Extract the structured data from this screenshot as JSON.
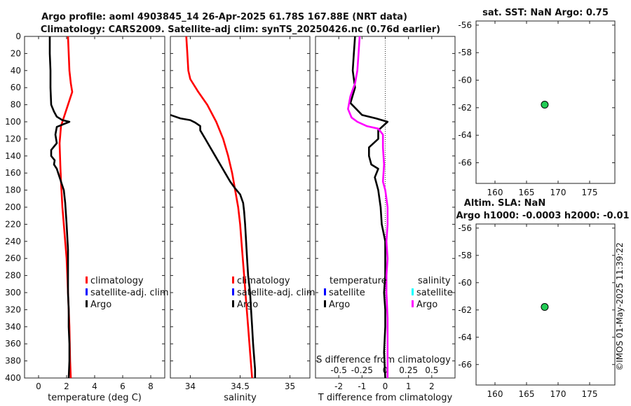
{
  "title": {
    "line1": "Argo profile: aoml 4903845_14 26-Apr-2025 61.78S 167.88E (NRT data)",
    "line2": "Climatology: CARS2009. Satellite-adj clim: synTS_20250426.nc (0.76d earlier)"
  },
  "timestamp": "©IMOS 01-May-2025 11:39:22",
  "colors": {
    "argo": "#000000",
    "climatology": "#ff0000",
    "satellite": "#0000ff",
    "salinity_argo": "#ff00ff",
    "salinity_sat": "#00ffff",
    "marker_fill": "#22cc55"
  },
  "chart_data": [
    {
      "id": "temperature",
      "type": "line",
      "xlabel": "temperature (deg C)",
      "xlim": [
        -1,
        9
      ],
      "xticks": [
        0,
        2,
        4,
        6,
        8
      ],
      "xticklabels": [
        "0",
        "2",
        "4",
        "6",
        "8"
      ],
      "ylim": [
        0,
        400
      ],
      "yticks": [
        0,
        20,
        40,
        60,
        80,
        100,
        120,
        140,
        160,
        180,
        200,
        220,
        240,
        260,
        280,
        300,
        320,
        340,
        360,
        380,
        400
      ],
      "yticklabels": [
        "0",
        "20",
        "40",
        "60",
        "80",
        "100",
        "120",
        "140",
        "160",
        "180",
        "200",
        "220",
        "240",
        "260",
        "280",
        "300",
        "320",
        "340",
        "360",
        "380",
        "400"
      ],
      "legend": [
        "climatology",
        "satellite-adj. clim",
        "Argo"
      ],
      "series": [
        {
          "name": "climatology",
          "color": "#ff0000",
          "x": [
            2.1,
            2.15,
            2.2,
            2.3,
            2.4,
            2.0,
            1.6,
            1.5,
            1.55,
            1.6,
            1.65,
            1.7,
            1.8,
            1.9,
            2.0,
            2.05,
            2.1,
            2.15,
            2.2,
            2.25,
            2.3
          ],
          "y": [
            0,
            20,
            40,
            55,
            65,
            85,
            105,
            125,
            150,
            170,
            185,
            200,
            220,
            240,
            260,
            280,
            300,
            320,
            340,
            380,
            400
          ]
        },
        {
          "name": "Argo",
          "color": "#000000",
          "x": [
            0.8,
            0.8,
            0.85,
            0.85,
            0.9,
            1.1,
            1.3,
            1.7,
            2.2,
            1.3,
            1.2,
            1.3,
            0.9,
            0.9,
            1.15,
            1.1,
            1.3,
            1.5,
            1.8,
            1.9,
            2.0,
            2.1,
            2.1,
            2.1,
            2.15,
            2.15,
            2.2,
            2.2,
            2.15
          ],
          "y": [
            0,
            20,
            40,
            60,
            80,
            88,
            94,
            98,
            100,
            106,
            115,
            125,
            133,
            140,
            145,
            150,
            155,
            165,
            180,
            195,
            220,
            250,
            280,
            300,
            320,
            340,
            360,
            380,
            400
          ]
        }
      ]
    },
    {
      "id": "salinity",
      "type": "line",
      "xlabel": "salinity",
      "xlim": [
        33.8,
        35.2
      ],
      "xticks": [
        34,
        34.5,
        35
      ],
      "xticklabels": [
        "34",
        "34.5",
        "35"
      ],
      "ylim": [
        0,
        400
      ],
      "legend": [
        "climatology",
        "satellite-adj. clim",
        "Argo"
      ],
      "series": [
        {
          "name": "climatology",
          "color": "#ff0000",
          "x": [
            33.96,
            33.97,
            33.98,
            34.0,
            34.08,
            34.17,
            34.26,
            34.33,
            34.38,
            34.42,
            34.45,
            34.48,
            34.5,
            34.52,
            34.54,
            34.56,
            34.58,
            34.6,
            34.62
          ],
          "y": [
            0,
            20,
            40,
            50,
            65,
            80,
            100,
            120,
            140,
            160,
            180,
            200,
            220,
            250,
            280,
            310,
            340,
            370,
            400
          ]
        },
        {
          "name": "Argo",
          "color": "#000000",
          "x": [
            33.8,
            33.9,
            34.0,
            34.05,
            34.1,
            34.1,
            34.15,
            34.2,
            34.25,
            34.3,
            34.35,
            34.4,
            34.45,
            34.5,
            34.53,
            34.54,
            34.55,
            34.56,
            34.57,
            34.58,
            34.6,
            34.61,
            34.62,
            34.63,
            34.64,
            34.65,
            34.65
          ],
          "y": [
            92,
            96,
            98,
            101,
            105,
            110,
            120,
            130,
            140,
            150,
            160,
            170,
            178,
            185,
            195,
            205,
            220,
            240,
            260,
            280,
            300,
            320,
            340,
            360,
            375,
            390,
            400
          ]
        }
      ]
    },
    {
      "id": "difference",
      "type": "line",
      "xlabel": "T difference from climatology",
      "xlabel2": "S difference from climatology",
      "xlim": [
        -3,
        3
      ],
      "xticks": [
        -2,
        -1,
        0,
        1,
        2
      ],
      "xticklabels": [
        "-2",
        "-1",
        "0",
        "1",
        "2"
      ],
      "x2ticks": [
        -2,
        -1,
        0,
        1,
        2
      ],
      "x2ticklabels": [
        "-0.5",
        "-0.25",
        "0",
        "0.25",
        "0.5"
      ],
      "ylim": [
        0,
        400
      ],
      "legend_t": [
        "temperature",
        "satellite",
        "Argo"
      ],
      "legend_s": [
        "salinity",
        "satellite",
        "Argo"
      ],
      "series": [
        {
          "name": "T Argo",
          "color": "#000000",
          "x": [
            -1.3,
            -1.35,
            -1.4,
            -1.3,
            -1.5,
            -1.0,
            -0.4,
            0.1,
            -0.3,
            -0.3,
            -0.7,
            -0.7,
            -0.6,
            -0.3,
            -0.45,
            -0.3,
            -0.25,
            -0.2,
            -0.15,
            0.0,
            0.0,
            0.0,
            -0.05,
            0.0,
            0.0,
            -0.05,
            0.0
          ],
          "y": [
            0,
            20,
            40,
            60,
            78,
            92,
            96,
            100,
            110,
            120,
            130,
            140,
            150,
            155,
            165,
            180,
            190,
            200,
            220,
            240,
            260,
            280,
            300,
            320,
            340,
            370,
            400
          ]
        },
        {
          "name": "S Argo",
          "color": "#ff00ff",
          "x": [
            -1.1,
            -1.15,
            -1.2,
            -1.3,
            -1.5,
            -1.6,
            -1.45,
            -1.2,
            -0.8,
            -0.3,
            -0.1,
            -0.1,
            -0.05,
            -0.1,
            0.0,
            0.05,
            0.1,
            0.1,
            0.05,
            0.1,
            0.05,
            0.05,
            0.1,
            0.1,
            0.1
          ],
          "y": [
            0,
            20,
            40,
            55,
            70,
            85,
            95,
            100,
            105,
            108,
            115,
            130,
            150,
            170,
            180,
            190,
            200,
            220,
            240,
            260,
            280,
            300,
            330,
            370,
            400
          ]
        }
      ]
    },
    {
      "id": "sst_map",
      "type": "scatter",
      "title": "sat. SST: NaN Argo: 0.75",
      "xlim": [
        157,
        179
      ],
      "ylim": [
        -67.5,
        -55.7
      ],
      "xticks": [
        160,
        165,
        170,
        175
      ],
      "xticklabels": [
        "160",
        "165",
        "170",
        "175"
      ],
      "yticks": [
        -56,
        -58,
        -60,
        -62,
        -64,
        -66
      ],
      "yticklabels": [
        "-56",
        "-58",
        "-60",
        "-62",
        "-64",
        "-66"
      ],
      "points": [
        {
          "x": 167.88,
          "y": -61.78
        }
      ]
    },
    {
      "id": "sla_map",
      "type": "scatter",
      "title": "Altim. SLA: NaN",
      "title2": "Argo h1000: -0.0003 h2000: -0.01",
      "xlim": [
        157,
        179
      ],
      "ylim": [
        -67.5,
        -55.7
      ],
      "xticks": [
        160,
        165,
        170,
        175
      ],
      "xticklabels": [
        "160",
        "165",
        "170",
        "175"
      ],
      "yticks": [
        -56,
        -58,
        -60,
        -62,
        -64,
        -66
      ],
      "yticklabels": [
        "-56",
        "-58",
        "-60",
        "-62",
        "-64",
        "-66"
      ],
      "points": [
        {
          "x": 167.88,
          "y": -61.78
        }
      ]
    }
  ]
}
